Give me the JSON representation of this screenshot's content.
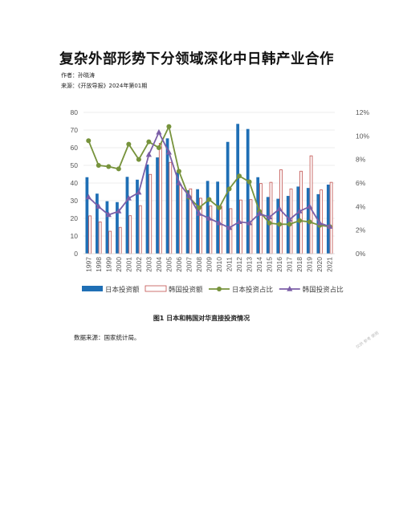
{
  "header": {
    "title": "复杂外部形势下分领域深化中日韩产业合作",
    "author": "作者：孙晓涛",
    "source_line": "来源：《开放导报》2024年第01期"
  },
  "figure": {
    "caption": "图1  日本和韩国对华直接投资情况",
    "data_source": "数据来源：国家统计局。"
  },
  "watermark": "仅供 参考 使用",
  "chart_data": {
    "type": "bar",
    "categories": [
      "1997",
      "1998",
      "1999",
      "2000",
      "2001",
      "2002",
      "2003",
      "2004",
      "2005",
      "2006",
      "2007",
      "2008",
      "2009",
      "2010",
      "2011",
      "2012",
      "2013",
      "2014",
      "2015",
      "2016",
      "2017",
      "2018",
      "2019",
      "2020",
      "2021"
    ],
    "series": [
      {
        "name": "日本投资额",
        "type": "bar",
        "axis": "left",
        "color": "#1f6fb5",
        "values": [
          43.3,
          34,
          29.7,
          29.2,
          43.5,
          41.9,
          50.5,
          54.5,
          65.3,
          46,
          35.9,
          36.5,
          41.2,
          40.8,
          63.3,
          73.5,
          70.6,
          43.3,
          32.1,
          31.1,
          32.7,
          38,
          37.2,
          33.7,
          39.1
        ]
      },
      {
        "name": "韩国投资额",
        "type": "bar",
        "axis": "left",
        "color": "#c0504d",
        "values": [
          21.4,
          18,
          12.7,
          14.9,
          21.5,
          27.2,
          44.9,
          62.5,
          51.7,
          38.9,
          36.7,
          31.4,
          27,
          26.9,
          25.5,
          30.4,
          30.6,
          39.7,
          40.4,
          47.5,
          36.7,
          46.7,
          55.4,
          36.1,
          40.4
        ]
      },
      {
        "name": "日本投资占比",
        "type": "line",
        "axis": "right",
        "color": "#77933c",
        "values": [
          9.6,
          7.5,
          7.4,
          7.2,
          9.3,
          8,
          9.5,
          9,
          10.8,
          7,
          4.8,
          3.9,
          4.6,
          3.9,
          5.5,
          6.6,
          6.1,
          3.6,
          2.6,
          2.5,
          2.5,
          2.8,
          2.7,
          2.4,
          2.3
        ]
      },
      {
        "name": "韩国投资占比",
        "type": "line",
        "axis": "right",
        "color": "#7b5ea7",
        "values": [
          4.8,
          4,
          3.3,
          3.6,
          4.7,
          5.2,
          8.4,
          10.3,
          8.6,
          6,
          4.9,
          3.4,
          3,
          2.6,
          2.2,
          2.7,
          2.6,
          3.4,
          3.1,
          3.8,
          2.9,
          3.6,
          4,
          2.6,
          2.3
        ]
      }
    ],
    "y_left": {
      "min": 0,
      "max": 80,
      "ticks": [
        0,
        10,
        20,
        30,
        40,
        50,
        60,
        70,
        80
      ]
    },
    "y_right": {
      "min": 0,
      "max": 12,
      "ticks": [
        "0%",
        "2%",
        "4%",
        "6%",
        "8%",
        "10%",
        "12%"
      ]
    },
    "grid": true,
    "legend_position": "bottom"
  }
}
